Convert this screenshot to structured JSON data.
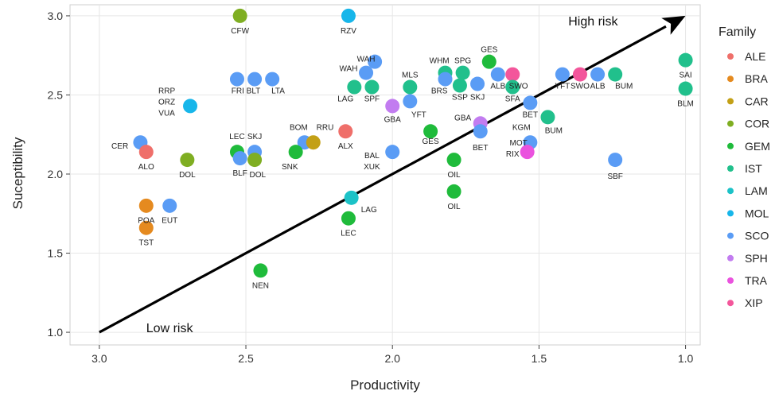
{
  "chart_data": {
    "type": "scatter",
    "xlabel": "Productivity",
    "ylabel": "Suceptibility",
    "xlim": [
      3.1,
      0.95
    ],
    "ylim": [
      0.92,
      3.07
    ],
    "x_reversed": true,
    "x_ticks": [
      "3.0",
      "2.5",
      "2.0",
      "1.5",
      "1.0"
    ],
    "x_tick_values": [
      3.0,
      2.5,
      2.0,
      1.5,
      1.0
    ],
    "y_ticks": [
      "1.0",
      "1.5",
      "2.0",
      "2.5",
      "3.0"
    ],
    "y_tick_values": [
      1.0,
      1.5,
      2.0,
      2.5,
      3.0
    ],
    "grid": true,
    "legend_position": "right",
    "legend_title": "Family",
    "families": [
      {
        "name": "ALE",
        "color": "#ef6f6a"
      },
      {
        "name": "BRA",
        "color": "#e58a1f"
      },
      {
        "name": "CAR",
        "color": "#c3a016"
      },
      {
        "name": "COR",
        "color": "#7fae22"
      },
      {
        "name": "GEM",
        "color": "#1fbb3b"
      },
      {
        "name": "IST",
        "color": "#21c08c"
      },
      {
        "name": "LAM",
        "color": "#1cc2c7"
      },
      {
        "name": "MOL",
        "color": "#17b6ea"
      },
      {
        "name": "SCO",
        "color": "#5a9cf5"
      },
      {
        "name": "SPH",
        "color": "#c27cf0"
      },
      {
        "name": "TRA",
        "color": "#ea52de"
      },
      {
        "name": "XIP",
        "color": "#f3569b"
      }
    ],
    "arrow": {
      "from": [
        3.0,
        1.0
      ],
      "to": [
        1.0,
        3.0
      ]
    },
    "annotations": [
      {
        "text": "High risk",
        "x": 1.4,
        "y": 2.94
      },
      {
        "text": "Low risk",
        "x": 2.84,
        "y": 1.0
      }
    ],
    "points": [
      {
        "label": "CFW",
        "x": 2.52,
        "y": 3.0,
        "family": "COR",
        "lx": 0.0,
        "ly": -0.09
      },
      {
        "label": "RZV",
        "x": 2.15,
        "y": 3.0,
        "family": "MOL",
        "lx": 0.0,
        "ly": -0.09
      },
      {
        "label": "",
        "x": 2.06,
        "y": 2.71,
        "family": "SCO"
      },
      {
        "label": "WAH",
        "x": 2.09,
        "y": 2.64,
        "family": "SCO",
        "lx": 0.0,
        "ly": 0.09
      },
      {
        "label": "WAH",
        "x": 2.09,
        "y": 2.64,
        "family": "SCO",
        "lx": 0.06,
        "ly": 0.03,
        "hidden_dot": true
      },
      {
        "label": "",
        "x": 2.53,
        "y": 2.6,
        "family": "SCO"
      },
      {
        "label": "",
        "x": 2.47,
        "y": 2.6,
        "family": "SCO"
      },
      {
        "label": "LTA",
        "x": 2.41,
        "y": 2.6,
        "family": "SCO",
        "lx": -0.02,
        "ly": -0.07
      },
      {
        "label": "FRI BLT",
        "x": 2.5,
        "y": 2.53,
        "family": "SCO",
        "hidden_dot": true
      },
      {
        "label": "RRP",
        "x": 2.69,
        "y": 2.43,
        "family": "MOL",
        "lx": 0.08,
        "ly": 0.1
      },
      {
        "label": "ORZ",
        "x": 2.69,
        "y": 2.43,
        "family": "MOL",
        "lx": 0.08,
        "ly": 0.03,
        "hidden_dot": true
      },
      {
        "label": "VUA",
        "x": 2.69,
        "y": 2.43,
        "family": "MOL",
        "lx": 0.08,
        "ly": -0.04,
        "hidden_dot": true
      },
      {
        "label": "LAG",
        "x": 2.13,
        "y": 2.55,
        "family": "IST",
        "lx": 0.03,
        "ly": -0.07
      },
      {
        "label": "SPF",
        "x": 2.07,
        "y": 2.55,
        "family": "IST",
        "lx": 0.0,
        "ly": -0.07
      },
      {
        "label": "MLS",
        "x": 1.94,
        "y": 2.55,
        "family": "IST",
        "lx": 0.0,
        "ly": 0.08
      },
      {
        "label": "GBA",
        "x": 2.0,
        "y": 2.43,
        "family": "SPH",
        "lx": 0.0,
        "ly": -0.08
      },
      {
        "label": "YFT",
        "x": 1.94,
        "y": 2.46,
        "family": "SCO",
        "lx": -0.03,
        "ly": -0.08
      },
      {
        "label": "WHM",
        "x": 1.82,
        "y": 2.64,
        "family": "IST",
        "lx": 0.02,
        "ly": 0.08
      },
      {
        "label": "SPG",
        "x": 1.76,
        "y": 2.64,
        "family": "IST",
        "lx": 0.0,
        "ly": 0.08
      },
      {
        "label": "GES",
        "x": 1.67,
        "y": 2.71,
        "family": "GEM",
        "lx": 0.0,
        "ly": 0.08
      },
      {
        "label": "BRS",
        "x": 1.82,
        "y": 2.6,
        "family": "SCO",
        "lx": 0.02,
        "ly": -0.07
      },
      {
        "label": "SSP",
        "x": 1.77,
        "y": 2.56,
        "family": "IST",
        "lx": 0.0,
        "ly": -0.07
      },
      {
        "label": "SKJ",
        "x": 1.71,
        "y": 2.57,
        "family": "SCO",
        "lx": 0.0,
        "ly": -0.08
      },
      {
        "label": "ALB",
        "x": 1.64,
        "y": 2.63,
        "family": "SCO",
        "lx": 0.0,
        "ly": -0.07
      },
      {
        "label": "SWO",
        "x": 1.59,
        "y": 2.63,
        "family": "XIP",
        "lx": -0.02,
        "ly": -0.07
      },
      {
        "label": "SFA",
        "x": 1.59,
        "y": 2.55,
        "family": "IST",
        "lx": 0.0,
        "ly": -0.07
      },
      {
        "label": "BET",
        "x": 1.53,
        "y": 2.45,
        "family": "SCO",
        "lx": 0.0,
        "ly": -0.07
      },
      {
        "label": "BUM",
        "x": 1.47,
        "y": 2.36,
        "family": "IST",
        "lx": -0.02,
        "ly": -0.08
      },
      {
        "label": "YFT",
        "x": 1.42,
        "y": 2.63,
        "family": "SCO",
        "lx": 0.0,
        "ly": -0.07
      },
      {
        "label": "SWO",
        "x": 1.36,
        "y": 2.63,
        "family": "XIP",
        "lx": 0.0,
        "ly": -0.07
      },
      {
        "label": "ALB",
        "x": 1.3,
        "y": 2.63,
        "family": "SCO",
        "lx": 0.0,
        "ly": -0.07
      },
      {
        "label": "BUM",
        "x": 1.24,
        "y": 2.63,
        "family": "IST",
        "lx": -0.03,
        "ly": -0.07
      },
      {
        "label": "SAI",
        "x": 1.0,
        "y": 2.72,
        "family": "IST",
        "lx": 0.0,
        "ly": -0.09
      },
      {
        "label": "BLM",
        "x": 1.0,
        "y": 2.54,
        "family": "IST",
        "lx": 0.0,
        "ly": -0.09
      },
      {
        "label": "GBA",
        "x": 1.7,
        "y": 2.32,
        "family": "SPH",
        "lx": 0.06,
        "ly": 0.04
      },
      {
        "label": "BET",
        "x": 1.7,
        "y": 2.27,
        "family": "SCO",
        "lx": 0.0,
        "ly": -0.1
      },
      {
        "label": "KGM",
        "x": 1.53,
        "y": 2.2,
        "family": "SCO",
        "lx": 0.03,
        "ly": 0.1
      },
      {
        "label": "MOT",
        "x": 1.54,
        "y": 2.14,
        "family": "TRA",
        "lx": 0.03,
        "ly": 0.06
      },
      {
        "label": "RIX",
        "x": 1.54,
        "y": 2.14,
        "family": "TRA",
        "lx": 0.05,
        "ly": -0.01,
        "hidden_dot": true
      },
      {
        "label": "SBF",
        "x": 1.24,
        "y": 2.09,
        "family": "SCO",
        "lx": 0.0,
        "ly": -0.1
      },
      {
        "label": "GES",
        "x": 1.87,
        "y": 2.27,
        "family": "GEM",
        "lx": 0.0,
        "ly": -0.06
      },
      {
        "label": "OIL",
        "x": 1.79,
        "y": 2.09,
        "family": "GEM",
        "lx": 0.0,
        "ly": -0.09
      },
      {
        "label": "OIL",
        "x": 1.79,
        "y": 1.89,
        "family": "GEM",
        "lx": 0.0,
        "ly": -0.09
      },
      {
        "label": "BAL",
        "x": 2.0,
        "y": 2.14,
        "family": "SCO",
        "lx": 0.07,
        "ly": -0.02
      },
      {
        "label": "XUK",
        "x": 2.0,
        "y": 2.14,
        "family": "SCO",
        "lx": 0.07,
        "ly": -0.09,
        "hidden_dot": true
      },
      {
        "label": "ALX",
        "x": 2.16,
        "y": 2.27,
        "family": "ALE",
        "lx": 0.0,
        "ly": -0.09
      },
      {
        "label": "BOM",
        "x": 2.3,
        "y": 2.2,
        "family": "SCO",
        "lx": 0.02,
        "ly": 0.1
      },
      {
        "label": "RRU",
        "x": 2.27,
        "y": 2.2,
        "family": "CAR",
        "lx": -0.04,
        "ly": 0.1
      },
      {
        "label": "SNK",
        "x": 2.33,
        "y": 2.14,
        "family": "GEM",
        "lx": 0.02,
        "ly": -0.09
      },
      {
        "label": "LEC",
        "x": 2.53,
        "y": 2.14,
        "family": "GEM",
        "lx": 0.0,
        "ly": 0.1
      },
      {
        "label": "SKJ",
        "x": 2.47,
        "y": 2.14,
        "family": "SCO",
        "lx": 0.0,
        "ly": 0.1
      },
      {
        "label": "BLF",
        "x": 2.52,
        "y": 2.1,
        "family": "SCO",
        "lx": 0.0,
        "ly": -0.09
      },
      {
        "label": "DOL",
        "x": 2.47,
        "y": 2.09,
        "family": "COR",
        "lx": -0.01,
        "ly": -0.09
      },
      {
        "label": "DOL",
        "x": 2.7,
        "y": 2.09,
        "family": "COR",
        "lx": 0.0,
        "ly": -0.09
      },
      {
        "label": "CER",
        "x": 2.86,
        "y": 2.2,
        "family": "SCO",
        "lx": 0.07,
        "ly": -0.02
      },
      {
        "label": "ALO",
        "x": 2.84,
        "y": 2.14,
        "family": "ALE",
        "lx": 0.0,
        "ly": -0.09
      },
      {
        "label": "LAG",
        "x": 2.14,
        "y": 1.85,
        "family": "LAM",
        "lx": -0.06,
        "ly": -0.07
      },
      {
        "label": "LEC",
        "x": 2.15,
        "y": 1.72,
        "family": "GEM",
        "lx": 0.0,
        "ly": -0.09
      },
      {
        "label": "POA",
        "x": 2.84,
        "y": 1.8,
        "family": "BRA",
        "lx": 0.0,
        "ly": -0.09
      },
      {
        "label": "EUT",
        "x": 2.76,
        "y": 1.8,
        "family": "SCO",
        "lx": 0.0,
        "ly": -0.09
      },
      {
        "label": "TST",
        "x": 2.84,
        "y": 1.66,
        "family": "BRA",
        "lx": 0.0,
        "ly": -0.09
      },
      {
        "label": "NEN",
        "x": 2.45,
        "y": 1.39,
        "family": "GEM",
        "lx": 0.0,
        "ly": -0.09
      }
    ]
  }
}
